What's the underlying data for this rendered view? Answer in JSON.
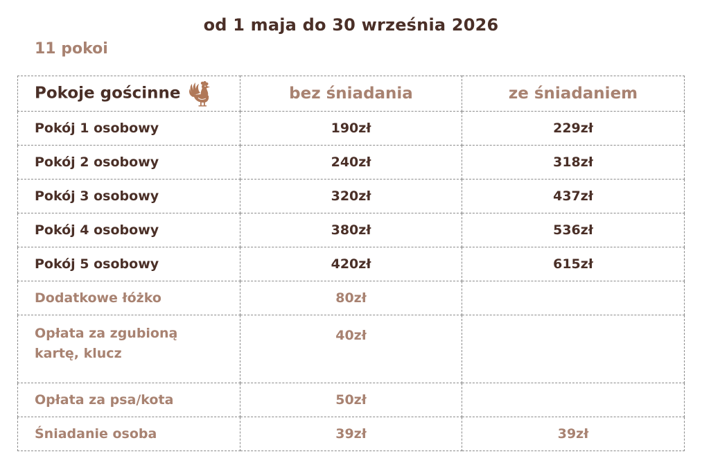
{
  "header": {
    "title": "od 1 maja do 30 września 2026",
    "rooms_count": "11 pokoi"
  },
  "table": {
    "columns": {
      "room_type": "Pokoje gościnne",
      "without_breakfast": "bez śniadania",
      "with_breakfast": "ze śniadaniem"
    },
    "header_icon": "rooster-icon",
    "rooms": [
      {
        "name": "Pokój 1 osobowy",
        "without_breakfast": "190zł",
        "with_breakfast": "229zł"
      },
      {
        "name": "Pokój 2 osobowy",
        "without_breakfast": "240zł",
        "with_breakfast": "318zł"
      },
      {
        "name": "Pokój 3 osobowy",
        "without_breakfast": "320zł",
        "with_breakfast": "437zł"
      },
      {
        "name": "Pokój 4 osobowy",
        "without_breakfast": "380zł",
        "with_breakfast": "536zł"
      },
      {
        "name": "Pokój 5 osobowy",
        "without_breakfast": "420zł",
        "with_breakfast": "615zł"
      }
    ],
    "extras": [
      {
        "name": "Dodatkowe łóżko",
        "without_breakfast": "80zł",
        "with_breakfast": ""
      },
      {
        "name_line1": "Opłata za zgubioną",
        "name_line2": "kartę, klucz",
        "without_breakfast": "40zł",
        "with_breakfast": ""
      },
      {
        "name": "Opłata za psa/kota",
        "without_breakfast": "50zł",
        "with_breakfast": ""
      },
      {
        "name": "Śniadanie osoba",
        "without_breakfast": "39zł",
        "with_breakfast": "39zł"
      }
    ]
  },
  "colors": {
    "dark_brown": "#4a2f27",
    "light_brown": "#a88271",
    "border": "#8a8a8a",
    "rooster": "#b07858"
  }
}
